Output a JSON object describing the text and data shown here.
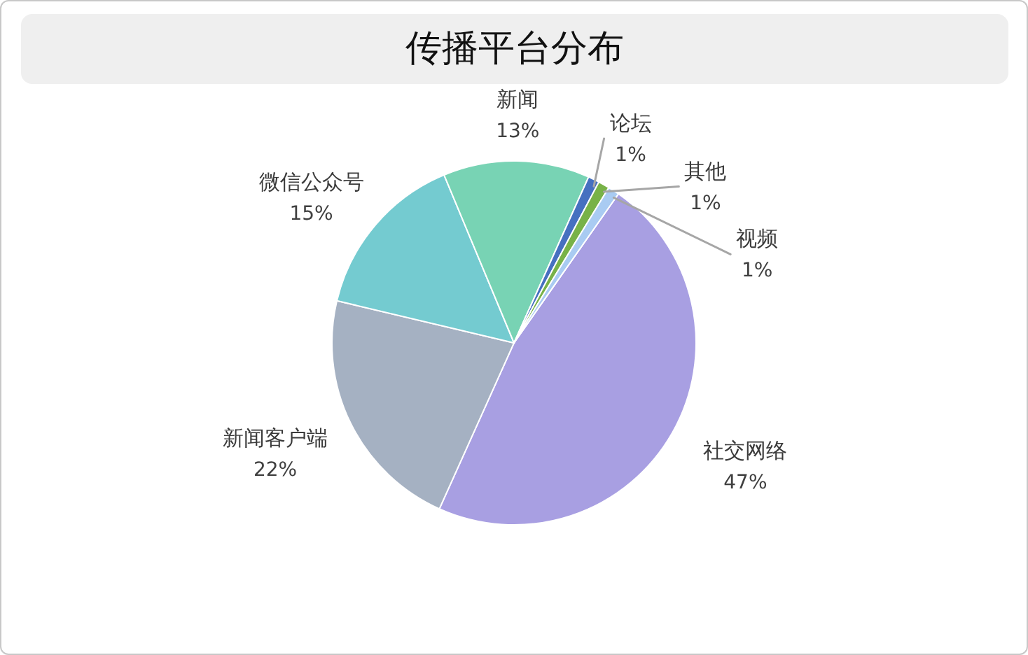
{
  "chart_data": {
    "type": "pie",
    "title": "传播平台分布",
    "categories": [
      "社交网络",
      "新闻客户端",
      "微信公众号",
      "新闻",
      "论坛",
      "其他",
      "视频"
    ],
    "values": [
      47,
      22,
      15,
      13,
      1,
      1,
      1
    ],
    "colors": [
      "#a89fe2",
      "#a5b1c2",
      "#74cbd0",
      "#78d3b4",
      "#4670c0",
      "#78b248",
      "#a9cbf2"
    ],
    "value_labels": [
      "47%",
      "22%",
      "15%",
      "13%",
      "1%",
      "1%",
      "1%"
    ]
  }
}
